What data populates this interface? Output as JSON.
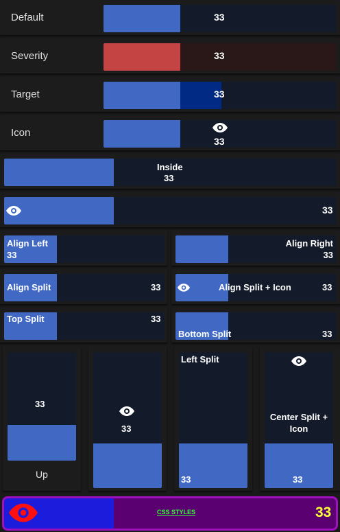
{
  "rows": {
    "default": {
      "label": "Default",
      "value": "33"
    },
    "severity": {
      "label": "Severity",
      "value": "33",
      "fill_color": "#c44444",
      "track_color": "#2a1818"
    },
    "target": {
      "label": "Target",
      "value": "33",
      "target_color": "#002a84"
    },
    "icon": {
      "label": "Icon",
      "value": "33",
      "icon": "eye-icon"
    }
  },
  "inside": {
    "label": "Inside",
    "value": "33"
  },
  "icon_wide": {
    "value": "33",
    "icon": "eye-icon"
  },
  "align_left": {
    "label": "Align Left",
    "value": "33"
  },
  "align_right": {
    "label": "Align Right",
    "value": "33"
  },
  "align_split": {
    "label": "Align Split",
    "value": "33"
  },
  "align_split_icon": {
    "label": "Align Split + Icon",
    "value": "33",
    "icon": "eye-icon"
  },
  "top_split": {
    "label": "Top Split",
    "value": "33"
  },
  "bottom_split": {
    "label": "Bottom Split",
    "value": "33"
  },
  "vertical": {
    "up": {
      "label": "Up",
      "value": "33"
    },
    "icon": {
      "value": "33",
      "icon": "eye-icon"
    },
    "left_split": {
      "label": "Left Split",
      "value": "33"
    },
    "center_split": {
      "label": "Center Split + Icon",
      "value": "33",
      "icon": "eye-icon"
    }
  },
  "css_styles": {
    "label": "CSS STYLES",
    "value": "33",
    "icon": "eye-icon",
    "fill_color": "#1c1cdc",
    "track_color": "#5a0070",
    "border_color": "#a010c0",
    "value_color": "#ffff33",
    "label_color": "#33ff33",
    "icon_color": "#ff1010"
  },
  "fill_fraction": 0.33
}
